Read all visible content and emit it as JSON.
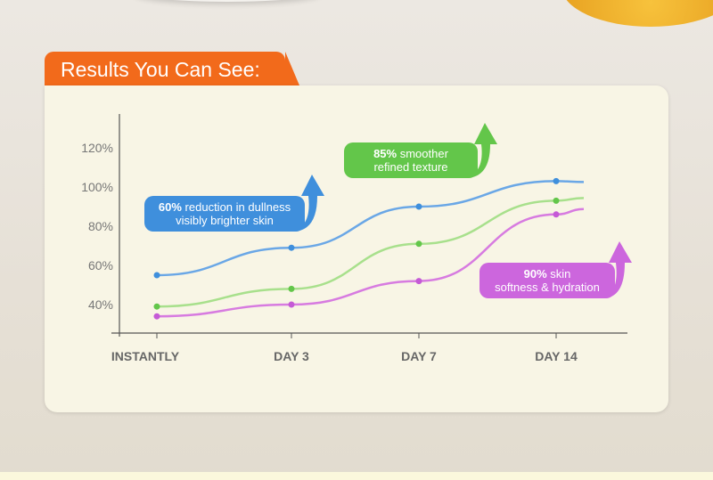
{
  "header": {
    "title": "Results You Can See:"
  },
  "chart_data": {
    "type": "line",
    "categories": [
      "INSTANTLY",
      "DAY 3",
      "DAY 7",
      "DAY 14"
    ],
    "yticks": [
      "40%",
      "60%",
      "80%",
      "100%",
      "120%"
    ],
    "ylim": [
      28,
      130
    ],
    "grid": false,
    "series": [
      {
        "color": "#6aa7e6",
        "point_color": "#3f8fdc",
        "values": [
          55,
          69,
          90,
          103
        ]
      },
      {
        "color": "#a8e08c",
        "point_color": "#63c64a",
        "values": [
          39,
          48,
          71,
          93
        ]
      },
      {
        "color": "#d77be0",
        "point_color": "#c55ad6",
        "values": [
          34,
          40,
          52,
          86
        ]
      }
    ],
    "annotations": [
      {
        "bold": "60%",
        "text1": " reduction in dullness",
        "text2": "visibly brighter skin",
        "color": "#3f8fdc"
      },
      {
        "bold": "85%",
        "text1": "  smoother",
        "text2": "refined texture",
        "color": "#63c64a"
      },
      {
        "bold": "90%",
        "text1": " skin",
        "text2": "softness & hydration",
        "color": "#cc66dd"
      }
    ]
  }
}
